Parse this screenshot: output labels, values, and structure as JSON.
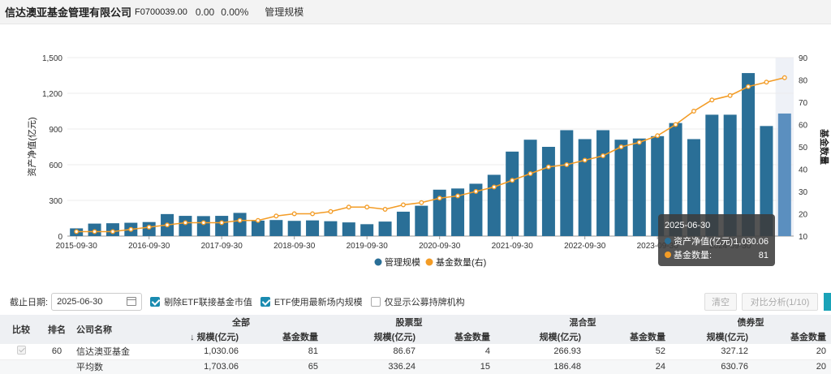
{
  "header": {
    "company": "信达澳亚基金管理有限公司",
    "code": "F0700039.00",
    "value": "0.00",
    "pct": "0.00%",
    "metric": "管理规模"
  },
  "chart_data": {
    "type": "bar",
    "categories": [
      "2015-09-30",
      "2015-12-31",
      "2016-03-31",
      "2016-06-30",
      "2016-09-30",
      "2016-12-31",
      "2017-03-31",
      "2017-06-30",
      "2017-09-30",
      "2017-12-31",
      "2018-03-31",
      "2018-06-30",
      "2018-09-30",
      "2018-12-31",
      "2019-03-31",
      "2019-06-30",
      "2019-09-30",
      "2019-12-31",
      "2020-03-31",
      "2020-06-30",
      "2020-09-30",
      "2020-12-31",
      "2021-03-31",
      "2021-06-30",
      "2021-09-30",
      "2021-12-31",
      "2022-03-31",
      "2022-06-30",
      "2022-09-30",
      "2022-12-31",
      "2023-03-31",
      "2023-06-30",
      "2023-09-30",
      "2023-12-31",
      "2024-03-31",
      "2024-06-30",
      "2024-09-30",
      "2024-12-31",
      "2025-03-31",
      "2025-06-30"
    ],
    "x_tick_labels": [
      "2015-09-30",
      "2016-09-30",
      "2017-09-30",
      "2018-09-30",
      "2019-09-30",
      "2020-09-30",
      "2021-09-30",
      "2022-09-30",
      "2023-09-30",
      "2024-09-30"
    ],
    "series": [
      {
        "name": "管理规模",
        "axis": "left",
        "kind": "bar",
        "color": "#2a6f97",
        "values": [
          65,
          105,
          108,
          112,
          118,
          185,
          170,
          168,
          170,
          195,
          130,
          135,
          128,
          132,
          125,
          115,
          100,
          122,
          205,
          255,
          390,
          400,
          440,
          515,
          710,
          810,
          750,
          890,
          815,
          890,
          810,
          820,
          840,
          950,
          815,
          1020,
          1020,
          1370,
          925,
          1030.06
        ]
      },
      {
        "name": "基金数量(右)",
        "axis": "right",
        "kind": "line",
        "color": "#f39c26",
        "values": [
          12,
          12,
          12,
          13,
          14,
          15,
          16,
          16,
          16,
          17,
          17,
          19,
          20,
          20,
          21,
          23,
          23,
          22,
          24,
          25,
          27,
          28,
          30,
          32,
          35,
          38,
          41,
          42,
          44,
          46,
          50,
          52,
          55,
          60,
          66,
          71,
          73,
          77,
          79,
          81
        ]
      }
    ],
    "ylabel_left": "资产净值(亿元)",
    "ylabel_right": "基金数量",
    "y_left_ticks": [
      "0",
      "300",
      "600",
      "900",
      "1,200",
      "1,500"
    ],
    "y_right_ticks": [
      "10",
      "20",
      "30",
      "40",
      "50",
      "60",
      "70",
      "80",
      "90"
    ],
    "ylim_left": [
      0,
      1500
    ],
    "ylim_right": [
      10,
      90
    ],
    "legend_position": "bottom-center",
    "tooltip": {
      "date": "2025-06-30",
      "row1_label": "资产净值(亿元):",
      "row1_value": "1,030.06",
      "row2_label": "基金数量:",
      "row2_value": "81"
    }
  },
  "filters": {
    "date_label": "截止日期:",
    "date_value": "2025-06-30",
    "opt1": "剔除ETF联接基金市值",
    "opt2": "ETF使用最新场内规模",
    "opt3": "仅显示公募持牌机构",
    "clear": "清空",
    "compare": "对比分析(1/10)"
  },
  "table": {
    "group_all": "全部",
    "group_stock": "股票型",
    "group_mixed": "混合型",
    "group_bond": "债券型",
    "col_compare": "比较",
    "col_rank": "排名",
    "col_name": "公司名称",
    "col_scale_sorted": "↓ 规模(亿元)",
    "col_count": "基金数量",
    "col_scale": "规模(亿元)",
    "row1": {
      "rank": "60",
      "name": "信达澳亚基金",
      "all_scale": "1,030.06",
      "all_count": "81",
      "stock_scale": "86.67",
      "stock_count": "4",
      "mixed_scale": "266.93",
      "mixed_count": "52",
      "bond_scale": "327.12",
      "bond_count": "20"
    },
    "row2": {
      "name": "平均数",
      "all_scale": "1,703.06",
      "all_count": "65",
      "stock_scale": "336.24",
      "stock_count": "15",
      "mixed_scale": "186.48",
      "mixed_count": "24",
      "bond_scale": "630.76",
      "bond_count": "20"
    }
  }
}
